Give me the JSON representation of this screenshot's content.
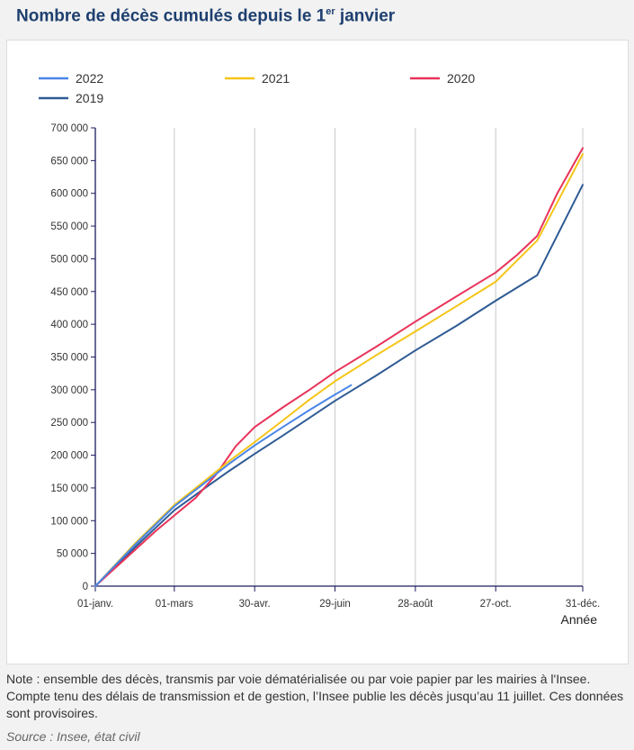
{
  "title": {
    "main": "Nombre de décès cumulés depuis le 1",
    "sup": "er",
    "end": " janvier"
  },
  "note": "Note : ensemble des décès, transmis par voie dématérialisée ou par voie papier par les mairies à l'Insee. Compte tenu des délais de transmission et de gestion, l’Insee publie les décès jusqu’au 11 juillet. Ces données sont provisoires.",
  "source": "Source : Insee, état civil",
  "chart_data": {
    "type": "line",
    "title": "Nombre de décès cumulés depuis le 1er janvier",
    "xlabel": "Année",
    "ylabel": "",
    "x_ticks": [
      "01-janv.",
      "01-mars",
      "30-avr.",
      "29-juin",
      "28-août",
      "27-oct.",
      "31-déc."
    ],
    "x_tick_days": [
      0,
      59,
      119,
      179,
      239,
      299,
      364
    ],
    "xlim": [
      0,
      364
    ],
    "ylim": [
      0,
      700000
    ],
    "y_ticks": [
      "0",
      "50 000",
      "100 000",
      "150 000",
      "200 000",
      "250 000",
      "300 000",
      "350 000",
      "400 000",
      "450 000",
      "500 000",
      "550 000",
      "600 000",
      "650 000",
      "700 000"
    ],
    "grid": "vertical",
    "legend_position": "top",
    "series": [
      {
        "name": "2022",
        "color": "#4a86e8",
        "x": [
          0,
          15,
          30,
          45,
          59,
          80,
          100,
          119,
          140,
          160,
          176,
          191
        ],
        "values": [
          0,
          32000,
          64000,
          94000,
          122000,
          155000,
          187000,
          215000,
          243000,
          269000,
          289000,
          307000
        ]
      },
      {
        "name": "2021",
        "color": "#f5c518",
        "x": [
          0,
          15,
          30,
          45,
          59,
          80,
          100,
          119,
          140,
          160,
          179,
          210,
          239,
          270,
          299,
          330,
          364
        ],
        "values": [
          0,
          33000,
          66000,
          96000,
          124000,
          158000,
          191000,
          220000,
          253000,
          285000,
          313000,
          353000,
          389000,
          428000,
          465000,
          528000,
          660000
        ]
      },
      {
        "name": "2020",
        "color": "#e8335a",
        "x": [
          0,
          15,
          30,
          45,
          59,
          75,
          90,
          105,
          119,
          140,
          160,
          179,
          210,
          239,
          270,
          299,
          315,
          330,
          345,
          364
        ],
        "values": [
          0,
          28000,
          56000,
          84000,
          108000,
          135000,
          170000,
          214000,
          243000,
          273000,
          300000,
          327000,
          366000,
          404000,
          443000,
          479000,
          506000,
          535000,
          600000,
          669000
        ]
      },
      {
        "name": "2019",
        "color": "#2f5b94",
        "x": [
          0,
          15,
          30,
          45,
          59,
          80,
          100,
          119,
          140,
          160,
          179,
          210,
          239,
          270,
          299,
          330,
          364
        ],
        "values": [
          0,
          30000,
          60000,
          89000,
          116000,
          147000,
          176000,
          202000,
          230000,
          257000,
          283000,
          322000,
          360000,
          398000,
          436000,
          475000,
          613000
        ]
      }
    ]
  }
}
